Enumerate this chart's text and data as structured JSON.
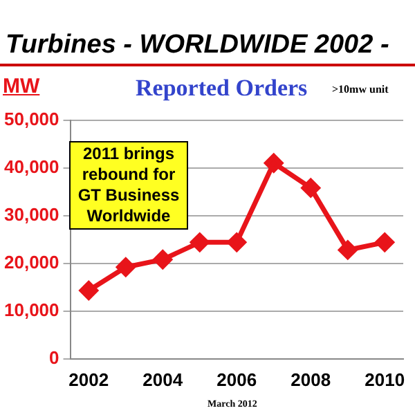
{
  "chart_data": {
    "type": "line",
    "title": "Turbines - WORLDWIDE  2002 -",
    "subtitle": "Reported  Orders",
    "ylabel": "MW",
    "annotations": [
      ">10mw unit",
      "2011 brings rebound for GT Business Worldwide",
      "March 2012"
    ],
    "x": [
      2002,
      2003,
      2004,
      2005,
      2006,
      2007,
      2008,
      2009,
      2010
    ],
    "series": [
      {
        "color": "#e8141a",
        "values": [
          14300,
          19200,
          20800,
          24400,
          24400,
          41000,
          35800,
          22800,
          24400
        ]
      }
    ],
    "xlim": [
      2001.5,
      2010.5
    ],
    "xticks": [
      2002,
      2004,
      2006,
      2008,
      2010
    ],
    "ylim": [
      0,
      50000
    ],
    "yticks": [
      {
        "value": 0,
        "label": "0"
      },
      {
        "value": 10000,
        "label": "10,000"
      },
      {
        "value": 20000,
        "label": "20,000"
      },
      {
        "value": 30000,
        "label": "30,000"
      },
      {
        "value": 40000,
        "label": "40,000"
      },
      {
        "value": 50000,
        "label": "50,000"
      }
    ],
    "grid": "y",
    "legend": false,
    "marker": "diamond",
    "line_style": "solid"
  }
}
